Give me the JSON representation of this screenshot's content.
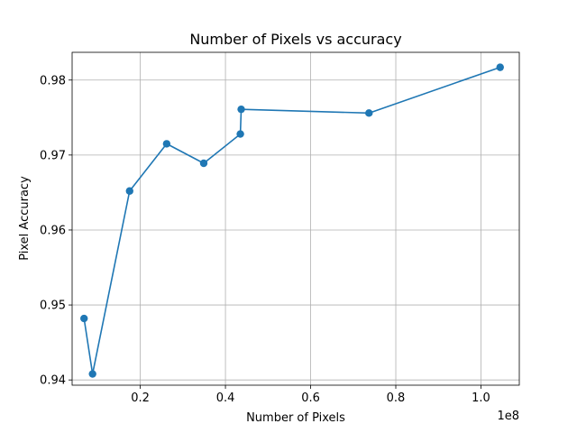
{
  "chart_data": {
    "type": "line",
    "title": "Number of Pixels vs accuracy",
    "xlabel": "Number of Pixels",
    "ylabel": "Pixel Accuracy",
    "x_offset_label": "1e8",
    "xlim": [
      0.04,
      1.09
    ],
    "ylim": [
      0.9393,
      0.9837
    ],
    "grid": true,
    "x_ticks": [
      {
        "value": 0.2,
        "label": "0.2"
      },
      {
        "value": 0.4,
        "label": "0.4"
      },
      {
        "value": 0.6,
        "label": "0.6"
      },
      {
        "value": 0.8,
        "label": "0.8"
      },
      {
        "value": 1.0,
        "label": "1.0"
      }
    ],
    "y_ticks": [
      {
        "value": 0.94,
        "label": "0.94"
      },
      {
        "value": 0.95,
        "label": "0.95"
      },
      {
        "value": 0.96,
        "label": "0.96"
      },
      {
        "value": 0.97,
        "label": "0.97"
      },
      {
        "value": 0.98,
        "label": "0.98"
      }
    ],
    "series": [
      {
        "color": "#1f77b4",
        "x": [
          0.068,
          0.088,
          0.175,
          0.262,
          0.349,
          0.435,
          0.437,
          0.737,
          1.045
        ],
        "y": [
          0.9482,
          0.9408,
          0.9652,
          0.9715,
          0.9689,
          0.9728,
          0.9761,
          0.9756,
          0.9817
        ]
      }
    ]
  }
}
